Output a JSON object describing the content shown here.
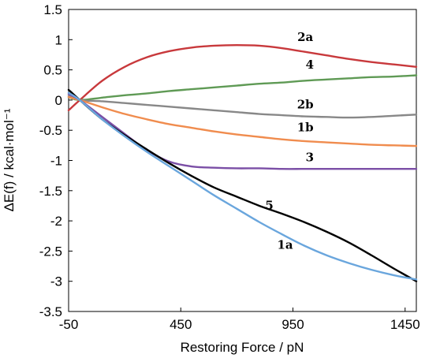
{
  "chart_data": {
    "type": "line",
    "title": "",
    "xlabel": "Restoring Force / pN",
    "ylabel": "ΔE(f) / kcal·mol⁻¹",
    "xlim": [
      -50,
      1500
    ],
    "ylim": [
      -3.5,
      1.5
    ],
    "x_ticks": [
      -50,
      450,
      950,
      1450
    ],
    "x_tick_labels": [
      "-50",
      "450",
      "950",
      "1450"
    ],
    "y_ticks": [
      1.5,
      1,
      0.5,
      0,
      -0.5,
      -1,
      -1.5,
      -2,
      -2.5,
      -3,
      -3.5
    ],
    "y_tick_labels": [
      "1.5",
      "1",
      "0.5",
      "0",
      "-0.5",
      "-1",
      "-1.5",
      "-2",
      "-2.5",
      "-3",
      "-3.5"
    ],
    "grid": false,
    "legend": "none",
    "series": [
      {
        "name": "2a",
        "color": "#c8393c",
        "x": [
          -50,
          0,
          100,
          200,
          300,
          400,
          500,
          600,
          700,
          800,
          900,
          1000,
          1100,
          1200,
          1300,
          1400,
          1500
        ],
        "y": [
          -0.17,
          0.0,
          0.32,
          0.55,
          0.71,
          0.81,
          0.87,
          0.9,
          0.91,
          0.9,
          0.86,
          0.8,
          0.74,
          0.68,
          0.63,
          0.59,
          0.55
        ]
      },
      {
        "name": "4",
        "color": "#5f9a55",
        "x": [
          -50,
          0,
          100,
          200,
          300,
          400,
          500,
          600,
          700,
          800,
          900,
          1000,
          1100,
          1200,
          1300,
          1400,
          1500
        ],
        "y": [
          0.05,
          0.0,
          0.04,
          0.08,
          0.11,
          0.15,
          0.18,
          0.21,
          0.24,
          0.27,
          0.29,
          0.32,
          0.34,
          0.36,
          0.38,
          0.39,
          0.41
        ]
      },
      {
        "name": "2b",
        "color": "#888888",
        "x": [
          -50,
          0,
          100,
          200,
          300,
          400,
          500,
          600,
          700,
          800,
          900,
          1000,
          1100,
          1200,
          1300,
          1400,
          1500
        ],
        "y": [
          0.07,
          0.0,
          -0.02,
          -0.05,
          -0.08,
          -0.11,
          -0.14,
          -0.17,
          -0.2,
          -0.23,
          -0.25,
          -0.27,
          -0.28,
          -0.29,
          -0.28,
          -0.26,
          -0.24
        ]
      },
      {
        "name": "1b",
        "color": "#f08c4e",
        "x": [
          -50,
          0,
          100,
          200,
          300,
          400,
          500,
          600,
          700,
          800,
          900,
          1000,
          1100,
          1200,
          1300,
          1400,
          1500
        ],
        "y": [
          0.05,
          0.0,
          -0.12,
          -0.23,
          -0.32,
          -0.4,
          -0.46,
          -0.52,
          -0.57,
          -0.61,
          -0.65,
          -0.68,
          -0.7,
          -0.72,
          -0.74,
          -0.75,
          -0.76
        ]
      },
      {
        "name": "3",
        "color": "#7b4fa6",
        "x": [
          -50,
          0,
          100,
          200,
          300,
          400,
          500,
          600,
          700,
          800,
          900,
          1000,
          1100,
          1200,
          1300,
          1400,
          1500
        ],
        "y": [
          0.1,
          0.0,
          -0.28,
          -0.56,
          -0.83,
          -1.02,
          -1.1,
          -1.12,
          -1.13,
          -1.13,
          -1.14,
          -1.14,
          -1.14,
          -1.14,
          -1.14,
          -1.14,
          -1.14
        ]
      },
      {
        "name": "5",
        "color": "#000000",
        "x": [
          -50,
          0,
          100,
          200,
          300,
          400,
          500,
          600,
          700,
          800,
          900,
          1000,
          1100,
          1200,
          1300,
          1400,
          1500
        ],
        "y": [
          0.17,
          0.0,
          -0.32,
          -0.58,
          -0.82,
          -1.05,
          -1.26,
          -1.45,
          -1.6,
          -1.75,
          -1.88,
          -2.02,
          -2.18,
          -2.36,
          -2.57,
          -2.79,
          -3.0
        ]
      },
      {
        "name": "1a",
        "color": "#6aa6dd",
        "x": [
          -50,
          0,
          100,
          200,
          300,
          400,
          500,
          600,
          700,
          800,
          900,
          1000,
          1100,
          1200,
          1300,
          1400,
          1500
        ],
        "y": [
          0.12,
          0.0,
          -0.32,
          -0.6,
          -0.86,
          -1.1,
          -1.34,
          -1.58,
          -1.8,
          -2.02,
          -2.22,
          -2.41,
          -2.57,
          -2.7,
          -2.81,
          -2.9,
          -2.97
        ]
      }
    ],
    "annotations": [
      {
        "text": "2a",
        "x": 1005,
        "y": 0.98
      },
      {
        "text": "4",
        "x": 1025,
        "y": 0.52
      },
      {
        "text": "2b",
        "x": 1005,
        "y": -0.14
      },
      {
        "text": "1b",
        "x": 1005,
        "y": -0.52
      },
      {
        "text": "3",
        "x": 1025,
        "y": -1.01
      },
      {
        "text": "5",
        "x": 845,
        "y": -1.81
      },
      {
        "text": "1a",
        "x": 915,
        "y": -2.46
      }
    ]
  }
}
